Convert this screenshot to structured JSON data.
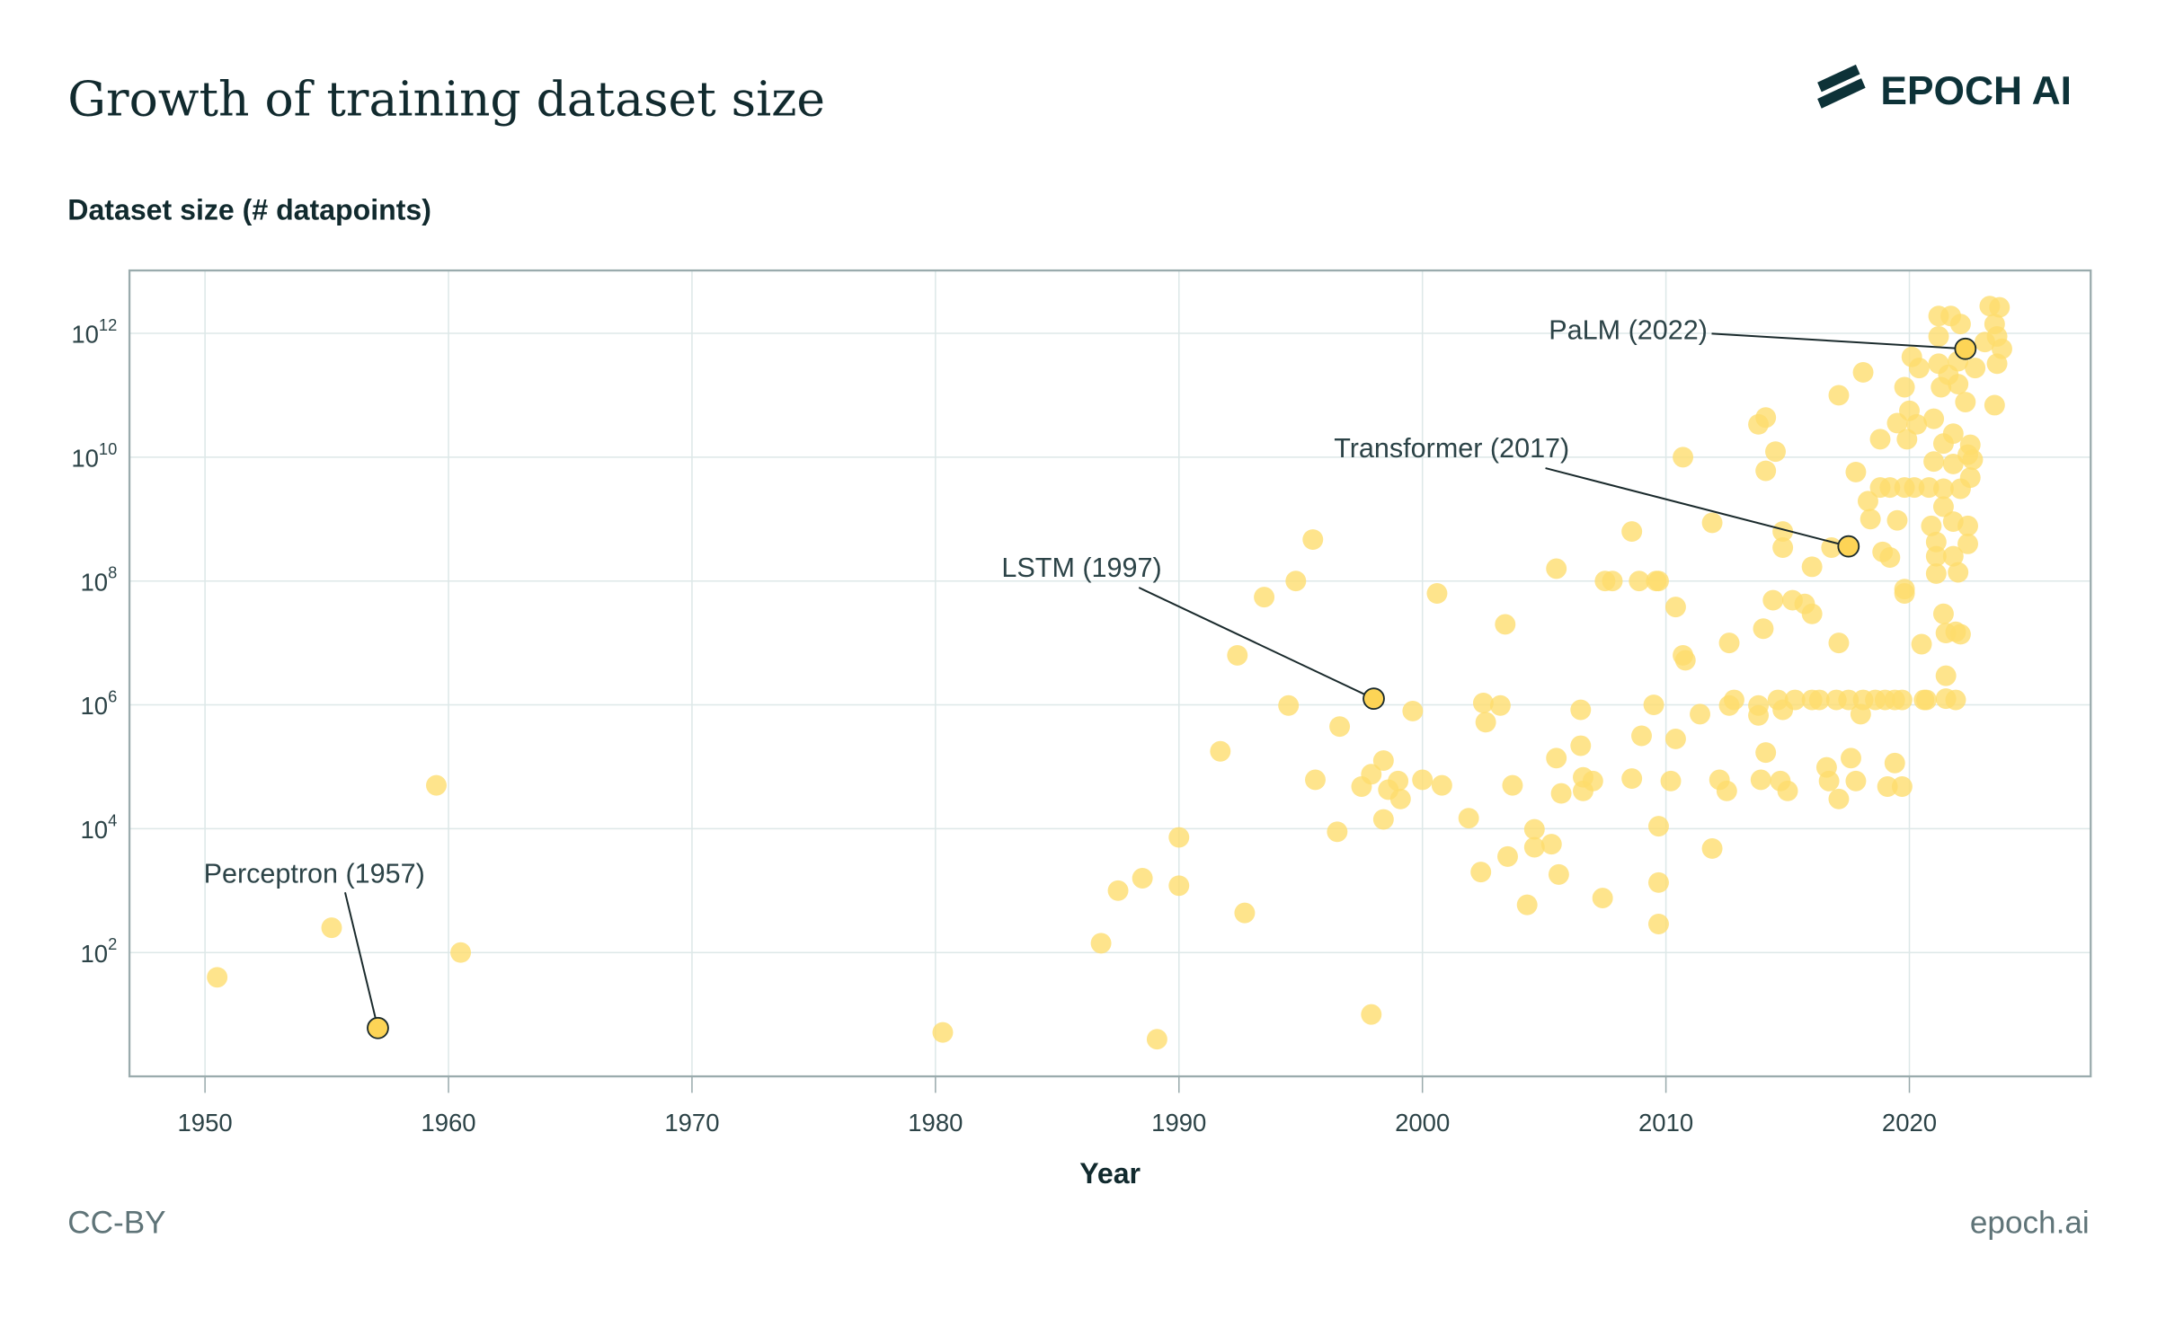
{
  "chart_data": {
    "type": "scatter",
    "title": "Growth of training dataset size",
    "ylabel": "Dataset size (# datapoints)",
    "xlabel": "Year",
    "yscale": "log",
    "xlim": [
      1947,
      2027.5
    ],
    "ylim_log10": [
      0,
      13
    ],
    "x_ticks": [
      1950,
      1960,
      1970,
      1980,
      1990,
      2000,
      2010,
      2020
    ],
    "x_tick_labels": [
      "1950",
      "1960",
      "1970",
      "1980",
      "1990",
      "2000",
      "2010",
      "2020"
    ],
    "y_ticks_log10": [
      2,
      4,
      6,
      8,
      10,
      12
    ],
    "y_tick_base": "10",
    "y_tick_exponents": [
      "2",
      "4",
      "6",
      "8",
      "10",
      "12"
    ],
    "grid": true,
    "colors": {
      "point": "#fedc6c",
      "highlight": "#fdd456",
      "highlight_stroke": "#1a2a2c",
      "grid": "#dde8e8",
      "frame": "#9aabad",
      "text": "#1f3b40"
    },
    "points_year_log10": [
      [
        1950.5,
        1.6
      ],
      [
        1955.2,
        2.4
      ],
      [
        1959.5,
        4.7
      ],
      [
        1960.5,
        2.0
      ],
      [
        1980.3,
        0.71
      ],
      [
        1986.8,
        2.15
      ],
      [
        1987.5,
        3.0
      ],
      [
        1988.5,
        3.2
      ],
      [
        1989.1,
        0.6
      ],
      [
        1990.0,
        3.86
      ],
      [
        1990.0,
        3.08
      ],
      [
        1991.7,
        5.25
      ],
      [
        1992.4,
        6.8
      ],
      [
        1992.7,
        2.64
      ],
      [
        1993.5,
        7.74
      ],
      [
        1994.5,
        5.99
      ],
      [
        1994.8,
        8.0
      ],
      [
        1995.5,
        8.67
      ],
      [
        1995.6,
        4.79
      ],
      [
        1996.5,
        3.95
      ],
      [
        1996.6,
        5.65
      ],
      [
        1997.5,
        4.68
      ],
      [
        1997.9,
        4.88
      ],
      [
        1997.9,
        1.0
      ],
      [
        1998.4,
        5.1
      ],
      [
        1998.4,
        4.15
      ],
      [
        1998.6,
        4.63
      ],
      [
        1999.0,
        4.77
      ],
      [
        1999.1,
        4.48
      ],
      [
        1999.6,
        5.9
      ],
      [
        2000.0,
        4.79
      ],
      [
        2000.6,
        7.8
      ],
      [
        2000.8,
        4.7
      ],
      [
        2001.9,
        4.17
      ],
      [
        2002.4,
        3.3
      ],
      [
        2002.5,
        6.03
      ],
      [
        2002.6,
        5.72
      ],
      [
        2003.2,
        5.99
      ],
      [
        2003.4,
        7.3
      ],
      [
        2003.5,
        3.55
      ],
      [
        2003.7,
        4.7
      ],
      [
        2004.3,
        2.77
      ],
      [
        2004.6,
        3.99
      ],
      [
        2004.6,
        3.7
      ],
      [
        2005.3,
        3.75
      ],
      [
        2005.5,
        8.2
      ],
      [
        2005.5,
        5.14
      ],
      [
        2005.6,
        3.26
      ],
      [
        2005.7,
        4.57
      ],
      [
        2006.5,
        5.92
      ],
      [
        2006.5,
        5.34
      ],
      [
        2006.6,
        4.83
      ],
      [
        2006.6,
        4.61
      ],
      [
        2007.0,
        4.77
      ],
      [
        2007.4,
        2.88
      ],
      [
        2007.5,
        8.0
      ],
      [
        2007.8,
        8.0
      ],
      [
        2008.6,
        4.81
      ],
      [
        2008.6,
        8.8
      ],
      [
        2008.9,
        8.0
      ],
      [
        2009.0,
        5.5
      ],
      [
        2009.6,
        8.0
      ],
      [
        2009.7,
        8.0
      ],
      [
        2009.5,
        6.0
      ],
      [
        2009.7,
        4.04
      ],
      [
        2009.7,
        3.13
      ],
      [
        2009.7,
        2.46
      ],
      [
        2010.4,
        7.58
      ],
      [
        2010.4,
        5.45
      ],
      [
        2010.2,
        4.77
      ],
      [
        2010.7,
        10.0
      ],
      [
        2010.7,
        6.8
      ],
      [
        2010.8,
        6.72
      ],
      [
        2011.4,
        5.85
      ],
      [
        2011.9,
        8.94
      ],
      [
        2011.9,
        3.68
      ],
      [
        2012.2,
        4.79
      ],
      [
        2012.5,
        4.61
      ],
      [
        2012.6,
        5.99
      ],
      [
        2012.6,
        7.0
      ],
      [
        2012.8,
        6.08
      ],
      [
        2013.8,
        5.99
      ],
      [
        2013.8,
        5.83
      ],
      [
        2013.8,
        10.53
      ],
      [
        2014.1,
        10.64
      ],
      [
        2014.1,
        9.78
      ],
      [
        2014.0,
        7.23
      ],
      [
        2014.1,
        5.23
      ],
      [
        2013.9,
        4.79
      ],
      [
        2014.4,
        7.69
      ],
      [
        2014.5,
        10.09
      ],
      [
        2014.6,
        6.08
      ],
      [
        2014.7,
        4.77
      ],
      [
        2014.8,
        8.8
      ],
      [
        2014.8,
        8.54
      ],
      [
        2014.8,
        5.92
      ],
      [
        2015.0,
        4.61
      ],
      [
        2015.2,
        7.69
      ],
      [
        2015.3,
        6.08
      ],
      [
        2015.7,
        7.63
      ],
      [
        2016.0,
        8.23
      ],
      [
        2016.0,
        7.47
      ],
      [
        2016.0,
        6.08
      ],
      [
        2016.3,
        6.08
      ],
      [
        2016.6,
        4.99
      ],
      [
        2016.7,
        4.77
      ],
      [
        2016.8,
        8.54
      ],
      [
        2017.0,
        6.08
      ],
      [
        2017.1,
        11.0
      ],
      [
        2017.1,
        7.0
      ],
      [
        2017.1,
        4.48
      ],
      [
        2017.5,
        6.08
      ],
      [
        2017.6,
        5.14
      ],
      [
        2017.8,
        9.76
      ],
      [
        2017.8,
        4.77
      ],
      [
        2018.0,
        5.85
      ],
      [
        2018.1,
        6.08
      ],
      [
        2018.1,
        11.37
      ],
      [
        2018.3,
        9.29
      ],
      [
        2018.4,
        9.0
      ],
      [
        2018.6,
        6.08
      ],
      [
        2018.8,
        9.51
      ],
      [
        2018.8,
        10.29
      ],
      [
        2018.9,
        8.47
      ],
      [
        2019.0,
        6.08
      ],
      [
        2019.1,
        4.68
      ],
      [
        2019.2,
        9.51
      ],
      [
        2019.2,
        8.38
      ],
      [
        2019.4,
        6.08
      ],
      [
        2019.4,
        5.06
      ],
      [
        2019.5,
        8.98
      ],
      [
        2019.5,
        10.55
      ],
      [
        2019.7,
        6.08
      ],
      [
        2019.7,
        4.68
      ],
      [
        2019.8,
        9.51
      ],
      [
        2019.8,
        7.8
      ],
      [
        2019.8,
        11.13
      ],
      [
        2019.8,
        7.87
      ],
      [
        2019.9,
        10.29
      ],
      [
        2020.0,
        10.75
      ],
      [
        2020.1,
        11.62
      ],
      [
        2020.2,
        9.51
      ],
      [
        2020.3,
        10.53
      ],
      [
        2020.4,
        11.44
      ],
      [
        2020.5,
        6.98
      ],
      [
        2020.6,
        6.08
      ],
      [
        2020.7,
        6.08
      ],
      [
        2020.8,
        9.51
      ],
      [
        2020.9,
        8.89
      ],
      [
        2021.0,
        10.62
      ],
      [
        2021.0,
        9.93
      ],
      [
        2021.1,
        8.63
      ],
      [
        2021.1,
        8.4
      ],
      [
        2021.1,
        8.12
      ],
      [
        2021.2,
        12.28
      ],
      [
        2021.2,
        11.95
      ],
      [
        2021.2,
        11.51
      ],
      [
        2021.3,
        11.13
      ],
      [
        2021.4,
        10.22
      ],
      [
        2021.4,
        9.49
      ],
      [
        2021.4,
        9.2
      ],
      [
        2021.4,
        7.47
      ],
      [
        2021.5,
        7.16
      ],
      [
        2021.5,
        6.47
      ],
      [
        2021.5,
        6.1
      ],
      [
        2021.6,
        11.33
      ],
      [
        2021.7,
        12.28
      ],
      [
        2021.8,
        10.38
      ],
      [
        2021.8,
        9.89
      ],
      [
        2021.8,
        8.96
      ],
      [
        2021.8,
        8.4
      ],
      [
        2021.9,
        7.18
      ],
      [
        2021.9,
        6.08
      ],
      [
        2022.0,
        11.55
      ],
      [
        2022.0,
        11.18
      ],
      [
        2022.0,
        8.14
      ],
      [
        2022.1,
        12.15
      ],
      [
        2022.1,
        9.49
      ],
      [
        2022.1,
        7.14
      ],
      [
        2022.3,
        10.89
      ],
      [
        2022.4,
        10.04
      ],
      [
        2022.4,
        8.6
      ],
      [
        2022.4,
        8.89
      ],
      [
        2022.5,
        9.67
      ],
      [
        2022.5,
        10.2
      ],
      [
        2022.6,
        9.96
      ],
      [
        2022.7,
        11.44
      ],
      [
        2023.1,
        11.86
      ],
      [
        2023.3,
        12.44
      ],
      [
        2023.5,
        12.15
      ],
      [
        2023.5,
        10.84
      ],
      [
        2023.6,
        11.51
      ],
      [
        2023.6,
        11.95
      ],
      [
        2023.7,
        12.42
      ],
      [
        2023.8,
        11.75
      ]
    ],
    "annotations": [
      {
        "label": "Perceptron (1957)",
        "year": 1957.1,
        "log10": 0.78
      },
      {
        "label": "LSTM (1997)",
        "year": 1998.0,
        "log10": 6.1
      },
      {
        "label": "Transformer (2017)",
        "year": 2017.5,
        "log10": 8.56
      },
      {
        "label": "PaLM (2022)",
        "year": 2022.3,
        "log10": 11.75
      }
    ]
  },
  "brand": {
    "logo_text": "EPOCH AI"
  },
  "footer": {
    "license": "CC-BY",
    "site": "epoch.ai"
  }
}
